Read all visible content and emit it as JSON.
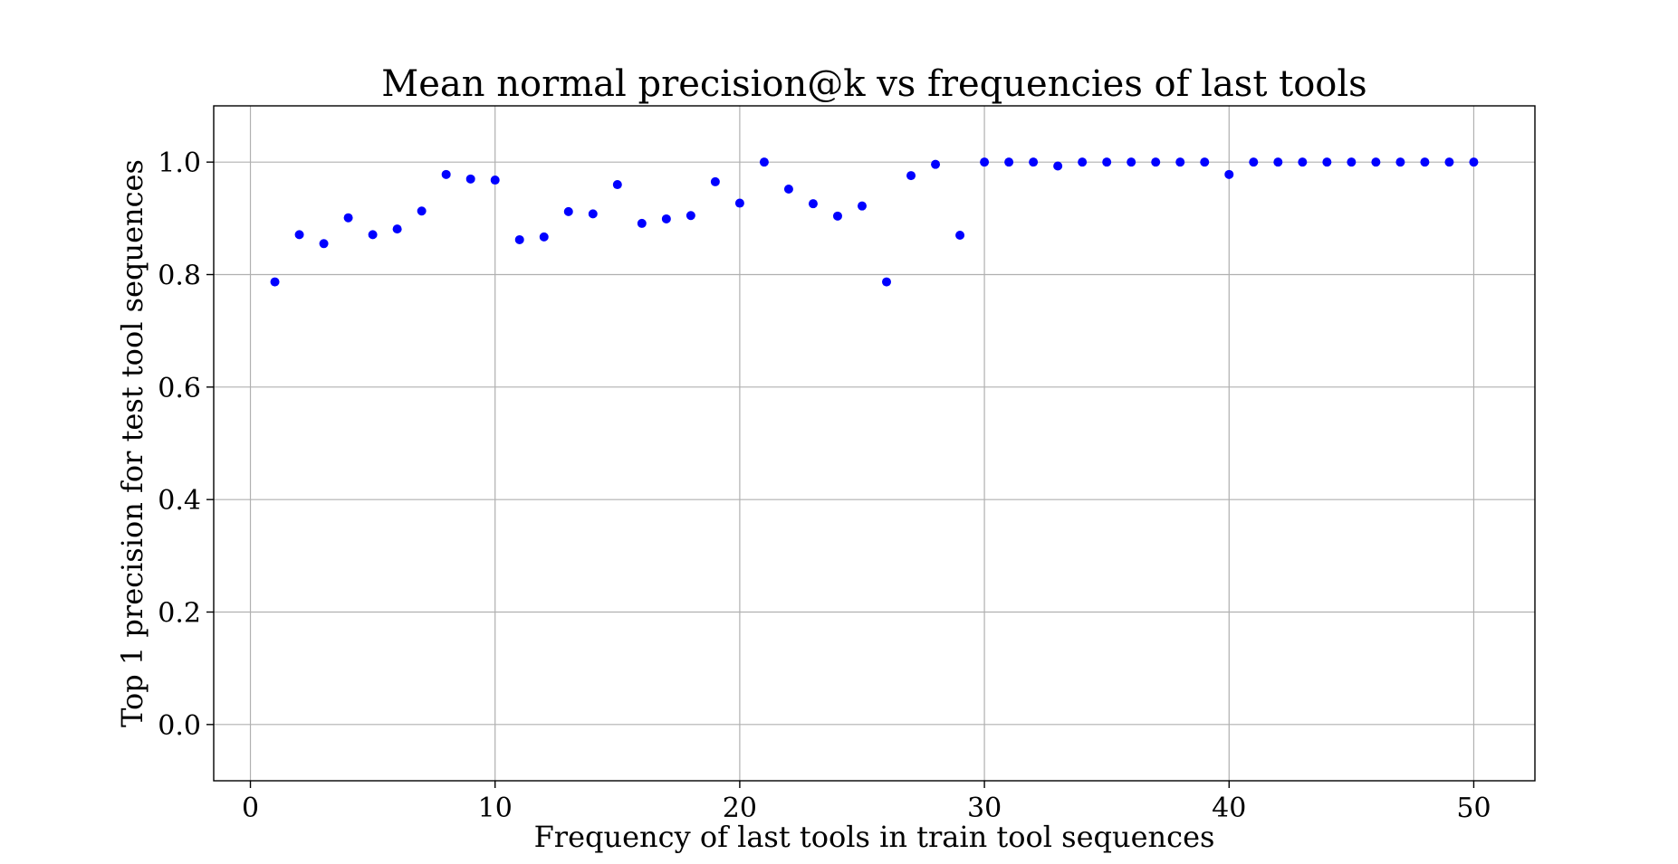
{
  "chart_data": {
    "type": "scatter",
    "title": "Mean normal precision@k vs frequencies of last tools",
    "xlabel": "Frequency of last tools in train tool sequences",
    "ylabel": "Top 1 precision for test tool sequences",
    "xlim": [
      -1.5,
      52.5
    ],
    "ylim": [
      -0.1,
      1.1
    ],
    "xticks": [
      0,
      10,
      20,
      30,
      40,
      50
    ],
    "yticks": [
      0.0,
      0.2,
      0.4,
      0.6,
      0.8,
      1.0
    ],
    "xtick_labels": [
      "0",
      "10",
      "20",
      "30",
      "40",
      "50"
    ],
    "ytick_labels": [
      "0.0",
      "0.2",
      "0.4",
      "0.6",
      "0.8",
      "1.0"
    ],
    "grid": true,
    "marker_color": "#0000ff",
    "x": [
      1,
      2,
      3,
      4,
      5,
      6,
      7,
      8,
      9,
      10,
      11,
      12,
      13,
      14,
      15,
      16,
      17,
      18,
      19,
      20,
      21,
      22,
      23,
      24,
      25,
      26,
      27,
      28,
      29,
      30,
      31,
      32,
      33,
      34,
      35,
      36,
      37,
      38,
      39,
      40,
      41,
      42,
      43,
      44,
      45,
      46,
      47,
      48,
      49,
      50
    ],
    "y": [
      0.787,
      0.871,
      0.855,
      0.901,
      0.871,
      0.881,
      0.913,
      0.978,
      0.97,
      0.968,
      0.862,
      0.867,
      0.912,
      0.908,
      0.96,
      0.891,
      0.899,
      0.905,
      0.965,
      0.927,
      1.0,
      0.952,
      0.926,
      0.904,
      0.922,
      0.787,
      0.976,
      0.996,
      0.87,
      1.0,
      1.0,
      1.0,
      0.993,
      1.0,
      1.0,
      1.0,
      1.0,
      1.0,
      1.0,
      0.978,
      1.0,
      1.0,
      1.0,
      1.0,
      1.0,
      1.0,
      1.0,
      1.0,
      1.0,
      1.0
    ]
  }
}
